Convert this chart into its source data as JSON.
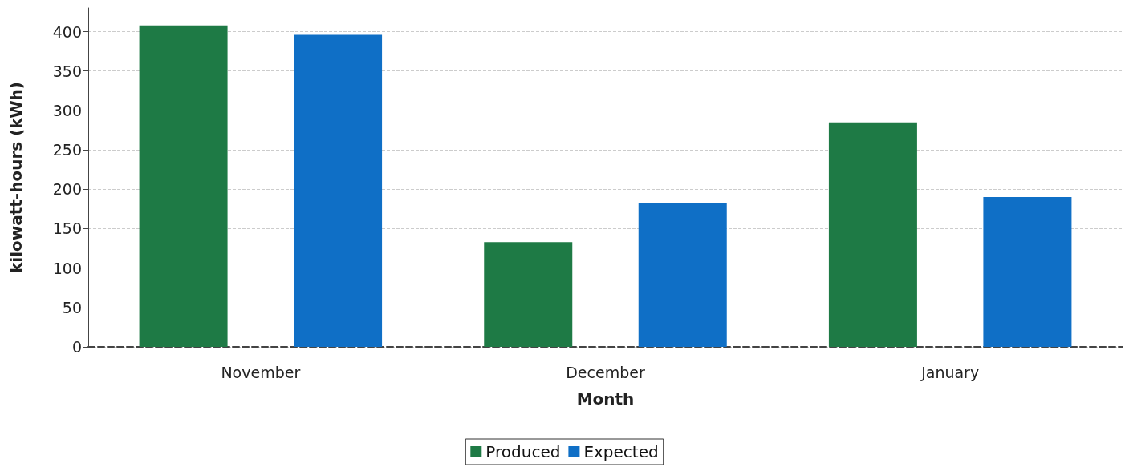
{
  "chart_data": {
    "type": "bar",
    "xlabel": "Month",
    "ylabel": "kilowatt-hours (kWh)",
    "categories": [
      "November",
      "December",
      "January"
    ],
    "series": [
      {
        "name": "Produced",
        "color": "#1e7a45",
        "values": [
          408,
          133,
          285
        ]
      },
      {
        "name": "Expected",
        "color": "#0f6fc6",
        "values": [
          396,
          182,
          190
        ]
      }
    ],
    "ylim": [
      0,
      430
    ],
    "yticks": [
      0,
      50,
      100,
      150,
      200,
      250,
      300,
      350,
      400
    ],
    "grid": "y",
    "legend": "bottom"
  }
}
